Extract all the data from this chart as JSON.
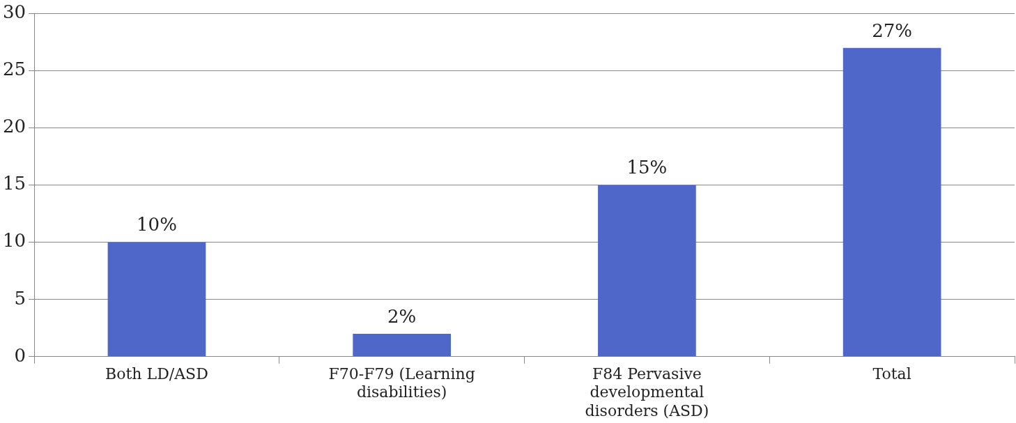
{
  "chart_data": {
    "type": "bar",
    "categories": [
      "Both LD/ASD",
      "F70-F79 (Learning disabilities)",
      "F84 Pervasive developmental disorders (ASD)",
      "Total"
    ],
    "values": [
      10,
      2,
      15,
      27
    ],
    "color": "#4f67c8",
    "value_labels": [
      "10%",
      "2%",
      "15%",
      "27%"
    ],
    "ylim": [
      0,
      30
    ],
    "yticks": [
      0,
      5,
      10,
      15,
      20,
      25,
      30
    ],
    "grid": "y",
    "legend": false
  }
}
